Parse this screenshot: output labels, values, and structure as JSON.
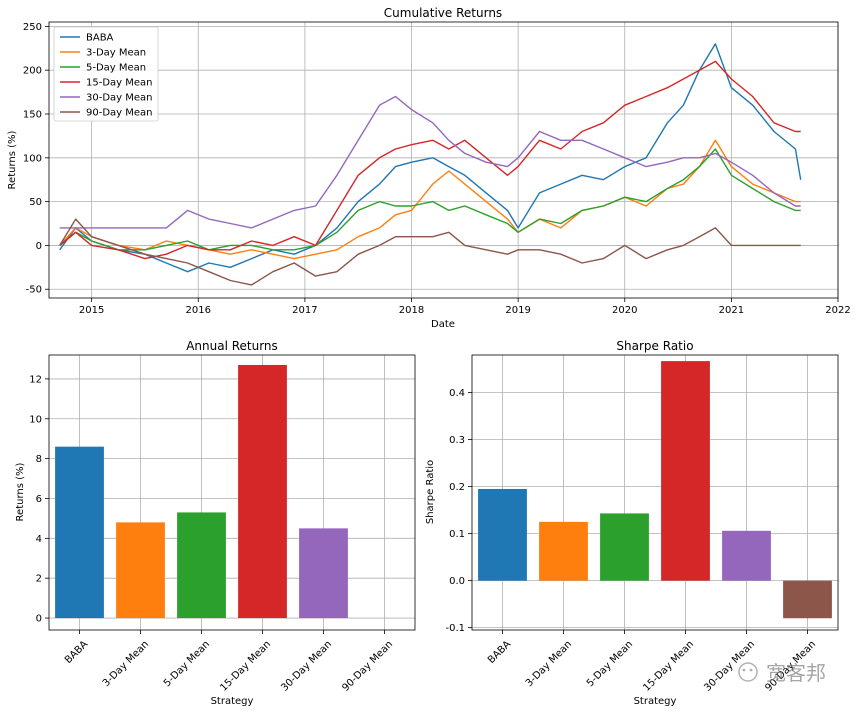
{
  "colors": {
    "BABA": "#1f77b4",
    "3-Day Mean": "#ff7f0e",
    "5-Day Mean": "#2ca02c",
    "15-Day Mean": "#d62728",
    "30-Day Mean": "#9467bd",
    "90-Day Mean": "#8c564b"
  },
  "chart_data": [
    {
      "type": "line",
      "title": "Cumulative Returns",
      "xlabel": "Date",
      "ylabel": "Returns (%)",
      "x_ticks": [
        "2015",
        "2016",
        "2017",
        "2018",
        "2019",
        "2020",
        "2021",
        "2022"
      ],
      "y_ticks": [
        "250",
        "200",
        "150",
        "100",
        "50",
        "0",
        "-50"
      ],
      "xlim": [
        2014.6,
        2022.0
      ],
      "ylim": [
        -60,
        255
      ],
      "grid": true,
      "legend": "top-left",
      "x": [
        2014.7,
        2014.85,
        2015.0,
        2015.25,
        2015.5,
        2015.7,
        2015.9,
        2016.1,
        2016.3,
        2016.5,
        2016.7,
        2016.9,
        2017.1,
        2017.3,
        2017.5,
        2017.7,
        2017.85,
        2018.0,
        2018.2,
        2018.35,
        2018.5,
        2018.7,
        2018.9,
        2019.0,
        2019.2,
        2019.4,
        2019.6,
        2019.8,
        2020.0,
        2020.2,
        2020.4,
        2020.55,
        2020.7,
        2020.85,
        2021.0,
        2021.2,
        2021.4,
        2021.6,
        2021.65
      ],
      "series": [
        {
          "name": "BABA",
          "values": [
            -5,
            20,
            5,
            -5,
            -10,
            -20,
            -30,
            -20,
            -25,
            -15,
            -5,
            -10,
            0,
            20,
            50,
            70,
            90,
            95,
            100,
            90,
            80,
            60,
            40,
            20,
            60,
            70,
            80,
            75,
            90,
            100,
            140,
            160,
            200,
            230,
            180,
            160,
            130,
            110,
            75
          ]
        },
        {
          "name": "3-Day Mean",
          "values": [
            0,
            20,
            10,
            0,
            -5,
            5,
            0,
            -5,
            -10,
            -5,
            -10,
            -15,
            -10,
            -5,
            10,
            20,
            35,
            40,
            70,
            85,
            70,
            50,
            30,
            15,
            30,
            20,
            40,
            45,
            55,
            45,
            65,
            70,
            90,
            120,
            90,
            70,
            60,
            50,
            50
          ]
        },
        {
          "name": "5-Day Mean",
          "values": [
            0,
            15,
            5,
            -5,
            -5,
            0,
            5,
            -5,
            0,
            0,
            -5,
            -5,
            0,
            15,
            40,
            50,
            45,
            45,
            50,
            40,
            45,
            35,
            25,
            15,
            30,
            25,
            40,
            45,
            55,
            50,
            65,
            75,
            90,
            110,
            80,
            65,
            50,
            40,
            40
          ]
        },
        {
          "name": "15-Day Mean",
          "values": [
            0,
            15,
            0,
            -5,
            -15,
            -10,
            0,
            -5,
            -5,
            5,
            0,
            10,
            0,
            40,
            80,
            100,
            110,
            115,
            120,
            110,
            120,
            100,
            80,
            90,
            120,
            110,
            130,
            140,
            160,
            170,
            180,
            190,
            200,
            210,
            190,
            170,
            140,
            130,
            130
          ]
        },
        {
          "name": "30-Day Mean",
          "values": [
            20,
            20,
            20,
            20,
            20,
            20,
            40,
            30,
            25,
            20,
            30,
            40,
            45,
            80,
            120,
            160,
            170,
            155,
            140,
            120,
            105,
            95,
            90,
            100,
            130,
            120,
            120,
            110,
            100,
            90,
            95,
            100,
            100,
            105,
            95,
            80,
            60,
            45,
            45
          ]
        },
        {
          "name": "90-Day Mean",
          "values": [
            0,
            30,
            10,
            0,
            -10,
            -15,
            -20,
            -30,
            -40,
            -45,
            -30,
            -20,
            -35,
            -30,
            -10,
            0,
            10,
            10,
            10,
            15,
            0,
            -5,
            -10,
            -5,
            -5,
            -10,
            -20,
            -15,
            0,
            -15,
            -5,
            0,
            10,
            20,
            0,
            0,
            0,
            0,
            0
          ]
        }
      ]
    },
    {
      "type": "bar",
      "title": "Annual Returns",
      "xlabel": "Strategy",
      "ylabel": "Returns (%)",
      "categories": [
        "BABA",
        "3-Day Mean",
        "5-Day Mean",
        "15-Day Mean",
        "30-Day Mean",
        "90-Day Mean"
      ],
      "values": [
        8.6,
        4.8,
        5.3,
        12.7,
        4.5,
        0.0
      ],
      "y_ticks": [
        "12",
        "10",
        "8",
        "6",
        "4",
        "2",
        "0"
      ],
      "ylim": [
        -0.6,
        13.2
      ],
      "grid": true
    },
    {
      "type": "bar",
      "title": "Sharpe Ratio",
      "xlabel": "Strategy",
      "ylabel": "Sharpe Ratio",
      "categories": [
        "BABA",
        "3-Day Mean",
        "5-Day Mean",
        "15-Day Mean",
        "30-Day Mean",
        "90-Day Mean"
      ],
      "values": [
        0.195,
        0.125,
        0.143,
        0.467,
        0.106,
        -0.08
      ],
      "y_ticks": [
        "0.4",
        "0.3",
        "0.2",
        "0.1",
        "0.0",
        "-0.1"
      ],
      "ylim": [
        -0.105,
        0.48
      ],
      "grid": true
    }
  ],
  "watermark": "宽客邦"
}
